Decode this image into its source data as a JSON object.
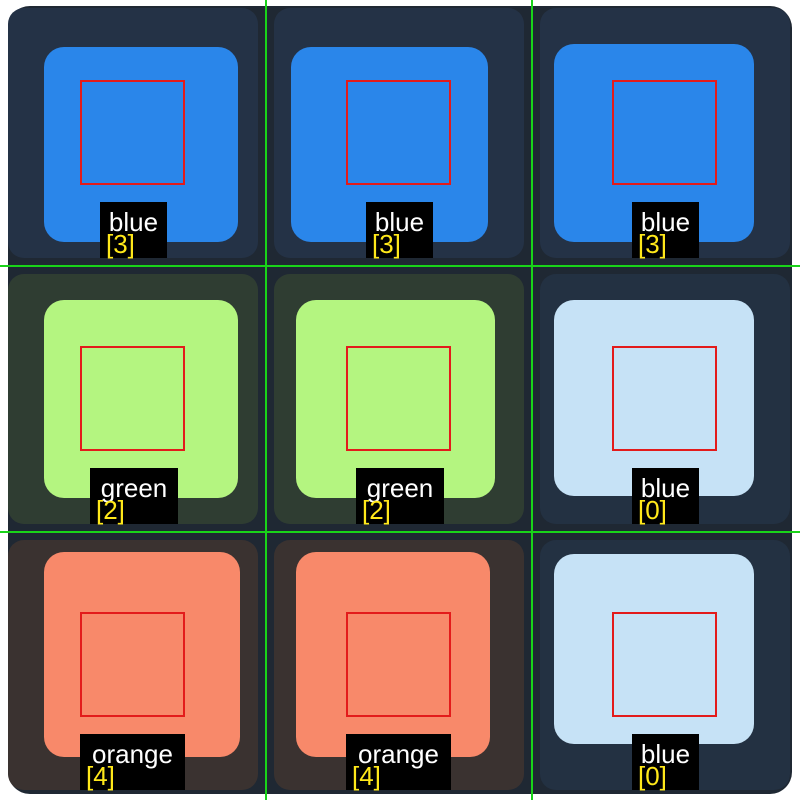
{
  "cells": [
    {
      "label": "blue",
      "index": "[3]",
      "sticker_color": "#2a86ea",
      "body_color": "#243246"
    },
    {
      "label": "blue",
      "index": "[3]",
      "sticker_color": "#2a86ea",
      "body_color": "#243246"
    },
    {
      "label": "blue",
      "index": "[3]",
      "sticker_color": "#2a86ea",
      "body_color": "#243246"
    },
    {
      "label": "green",
      "index": "[2]",
      "sticker_color": "#b4f580",
      "body_color": "#2f3d32"
    },
    {
      "label": "green",
      "index": "[2]",
      "sticker_color": "#b4f580",
      "body_color": "#2f3d32"
    },
    {
      "label": "blue",
      "index": "[0]",
      "sticker_color": "#c6e2f6",
      "body_color": "#233142"
    },
    {
      "label": "orange",
      "index": "[4]",
      "sticker_color": "#f8896a",
      "body_color": "#3a3230"
    },
    {
      "label": "orange",
      "index": "[4]",
      "sticker_color": "#f8896a",
      "body_color": "#3a3230"
    },
    {
      "label": "blue",
      "index": "[0]",
      "sticker_color": "#c6e2f6",
      "body_color": "#233142"
    }
  ],
  "colors": {
    "grid_line": "#19d319",
    "roi_box": "#e31b1b",
    "label_text": "#ffffff",
    "index_text": "#ffe81a",
    "tag_background": "#000000",
    "cube_body": "#1f2833"
  }
}
